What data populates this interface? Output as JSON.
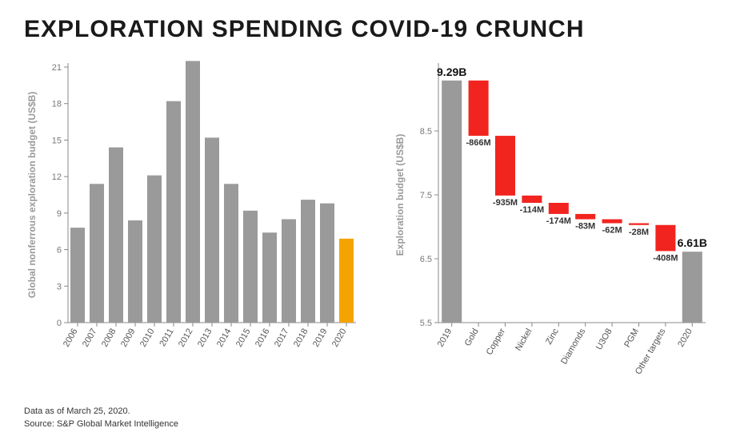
{
  "title": "EXPLORATION SPENDING COVID-19 CRUNCH",
  "footnote_line1": "Data as of March 25, 2020.",
  "footnote_line2": "Source: S&P Global Market Intelligence",
  "left_chart": {
    "type": "bar",
    "y_axis_label": "Global nonferrous exploration budget (US$B)",
    "categories": [
      "2006",
      "2007",
      "2008",
      "2009",
      "2010",
      "2011",
      "2012",
      "2013",
      "2014",
      "2015",
      "2016",
      "2017",
      "2018",
      "2019",
      "2020"
    ],
    "values": [
      7.8,
      11.4,
      14.4,
      8.4,
      12.1,
      18.2,
      21.5,
      15.2,
      11.4,
      9.2,
      7.4,
      8.5,
      10.1,
      9.8,
      6.9
    ],
    "bar_colors": [
      "#9a9a9a",
      "#9a9a9a",
      "#9a9a9a",
      "#9a9a9a",
      "#9a9a9a",
      "#9a9a9a",
      "#9a9a9a",
      "#9a9a9a",
      "#9a9a9a",
      "#9a9a9a",
      "#9a9a9a",
      "#9a9a9a",
      "#9a9a9a",
      "#9a9a9a",
      "#f5a300"
    ],
    "ylim": [
      0,
      21
    ],
    "ytick_step": 3,
    "background_color": "#ffffff",
    "axis_color": "#888888",
    "label_color": "#9a9a9a",
    "tick_fontsize": 11,
    "bar_gap_ratio": 0.25,
    "x_label_rotate": -60
  },
  "right_chart": {
    "type": "waterfall",
    "y_axis_label": "Exploration budget (US$B)",
    "ylim": [
      5.5,
      9.5
    ],
    "yticks": [
      5.5,
      6.5,
      7.5,
      8.5
    ],
    "categories": [
      "2019",
      "Gold",
      "Copper",
      "Nickel",
      "Zinc",
      "Diamonds",
      "U3O8",
      "PGM",
      "Other targets",
      "2020"
    ],
    "value_labels": [
      "9.29B",
      "-866M",
      "-935M",
      "-114M",
      "-174M",
      "-83M",
      "-62M",
      "-28M",
      "-408M",
      "6.61B"
    ],
    "deltas": [
      null,
      -0.866,
      -0.935,
      -0.114,
      -0.174,
      -0.083,
      -0.062,
      -0.028,
      -0.408,
      null
    ],
    "start_value": 9.29,
    "end_value": 6.61,
    "pillar_color": "#9a9a9a",
    "delta_color": "#f2241f",
    "axis_color": "#888888",
    "label_color": "#9a9a9a",
    "tick_fontsize": 11,
    "bar_gap_ratio": 0.25,
    "x_label_rotate": -60
  }
}
